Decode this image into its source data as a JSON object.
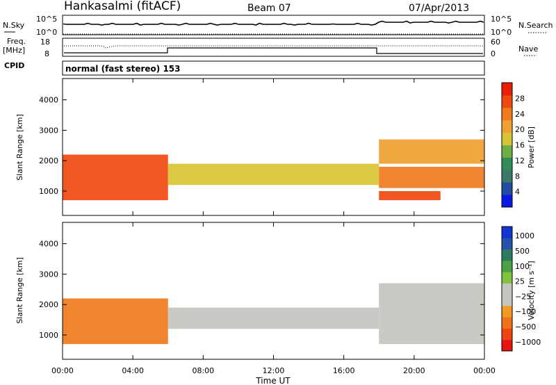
{
  "header": {
    "station": "Hankasalmi (fitACF)",
    "beam": "Beam 07",
    "date": "07/Apr/2013"
  },
  "top_panel": {
    "left_label": "N.Sky",
    "right_label": "N.Search",
    "ticks_left": [
      "10^5",
      "10^0"
    ],
    "ticks_right": [
      "10^5",
      "10^0"
    ]
  },
  "freq_panel": {
    "left_label_1": "Freq.",
    "left_label_2": "[MHz]",
    "right_label": "Nave",
    "ticks_left": [
      "18",
      "8"
    ],
    "ticks_right": [
      "60",
      "0"
    ]
  },
  "cpid": {
    "label": "CPID",
    "value": "normal (fast stereo) 153"
  },
  "colors": {
    "power_scale": [
      "#0a1ae6",
      "#214ba0",
      "#3a7868",
      "#2f8e58",
      "#6fae45",
      "#d8c435",
      "#f0a030",
      "#f07a1c",
      "#ee4a10",
      "#e81e08"
    ],
    "velocity_scale": [
      "#e81510",
      "#ee4412",
      "#f07218",
      "#f29a22",
      "#c5c5bf",
      "#c5c5bf",
      "#7fc23d",
      "#4aa146",
      "#2f7a62",
      "#2552a8",
      "#1234d0"
    ],
    "axis": "#000000",
    "background": "#ffffff"
  },
  "chart_data": [
    {
      "type": "heatmap",
      "name": "power",
      "ylabel": "Slant Range [km]",
      "yticks": [
        "1000",
        "2000",
        "3000",
        "4000"
      ],
      "ylim": [
        200,
        4700
      ],
      "colorbar": {
        "label": "Power [dB]",
        "ticks": [
          "4",
          "8",
          "12",
          "16",
          "20",
          "24",
          "28"
        ],
        "range": [
          0,
          32
        ]
      },
      "regions": [
        {
          "x_start_h": 0.0,
          "x_end_h": 6.0,
          "range_lo_km": 700,
          "range_hi_km": 2200,
          "value": 28
        },
        {
          "x_start_h": 6.0,
          "x_end_h": 18.0,
          "range_lo_km": 1200,
          "range_hi_km": 1900,
          "value": 16
        },
        {
          "x_start_h": 18.0,
          "x_end_h": 21.5,
          "range_lo_km": 700,
          "range_hi_km": 1000,
          "value": 28
        },
        {
          "x_start_h": 18.0,
          "x_end_h": 24.0,
          "range_lo_km": 1100,
          "range_hi_km": 1800,
          "value": 24
        },
        {
          "x_start_h": 18.0,
          "x_end_h": 24.0,
          "range_lo_km": 1900,
          "range_hi_km": 2700,
          "value": 20
        }
      ]
    },
    {
      "type": "heatmap",
      "name": "velocity",
      "ylabel": "Slant Range [km]",
      "yticks": [
        "1000",
        "2000",
        "3000",
        "4000"
      ],
      "ylim": [
        200,
        4700
      ],
      "colorbar": {
        "label": "Velocity [m s⁻¹]",
        "ticks": [
          "1000",
          "500",
          "100",
          "25",
          "−25",
          "−100",
          "−500",
          "−1000"
        ]
      },
      "regions": [
        {
          "x_start_h": 0.0,
          "x_end_h": 6.0,
          "range_lo_km": 700,
          "range_hi_km": 2200,
          "value": -100
        },
        {
          "x_start_h": 6.0,
          "x_end_h": 18.0,
          "range_lo_km": 1200,
          "range_hi_km": 1900,
          "value": 0
        },
        {
          "x_start_h": 18.0,
          "x_end_h": 24.0,
          "range_lo_km": 700,
          "range_hi_km": 2700,
          "value": 0
        }
      ]
    }
  ],
  "x_axis": {
    "xlabel": "Time UT",
    "ticks": [
      "00:00",
      "04:00",
      "08:00",
      "12:00",
      "16:00",
      "20:00",
      "00:00"
    ],
    "range_hours": [
      0,
      24
    ]
  }
}
